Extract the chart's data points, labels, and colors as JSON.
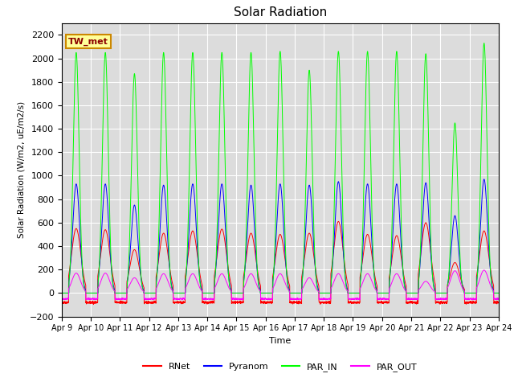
{
  "title": "Solar Radiation",
  "ylabel": "Solar Radiation (W/m2, uE/m2/s)",
  "xlabel": "Time",
  "ylim": [
    -200,
    2300
  ],
  "yticks": [
    -200,
    0,
    200,
    400,
    600,
    800,
    1000,
    1200,
    1400,
    1600,
    1800,
    2000,
    2200
  ],
  "x_labels": [
    "Apr 9",
    "Apr 10",
    "Apr 11",
    "Apr 12",
    "Apr 13",
    "Apr 14",
    "Apr 15",
    "Apr 16",
    "Apr 17",
    "Apr 18",
    "Apr 19",
    "Apr 20",
    "Apr 21",
    "Apr 22",
    "Apr 23",
    "Apr 24"
  ],
  "annotation_text": "TW_met",
  "colors": {
    "RNet": "#FF0000",
    "Pyranom": "#0000FF",
    "PAR_IN": "#00FF00",
    "PAR_OUT": "#FF00FF"
  },
  "plot_bg": "#DCDCDC",
  "fig_bg": "#FFFFFF",
  "grid_color": "#FFFFFF",
  "n_days": 15,
  "points_per_day": 288,
  "legend_entries": [
    "RNet",
    "Pyranom",
    "PAR_IN",
    "PAR_OUT"
  ],
  "peaks_PAR_IN": [
    2050,
    2050,
    1870,
    2050,
    2050,
    2050,
    2050,
    2060,
    1900,
    2060,
    2060,
    2060,
    2040,
    1450,
    2130
  ],
  "peaks_Pyranom": [
    930,
    930,
    750,
    920,
    930,
    930,
    920,
    930,
    920,
    950,
    930,
    930,
    940,
    660,
    970
  ],
  "peaks_RNet": [
    550,
    540,
    370,
    510,
    530,
    545,
    510,
    500,
    510,
    610,
    500,
    490,
    600,
    260,
    530
  ],
  "peaks_PAR_OUT": [
    170,
    170,
    130,
    165,
    165,
    165,
    165,
    165,
    130,
    165,
    165,
    165,
    100,
    190,
    195
  ]
}
